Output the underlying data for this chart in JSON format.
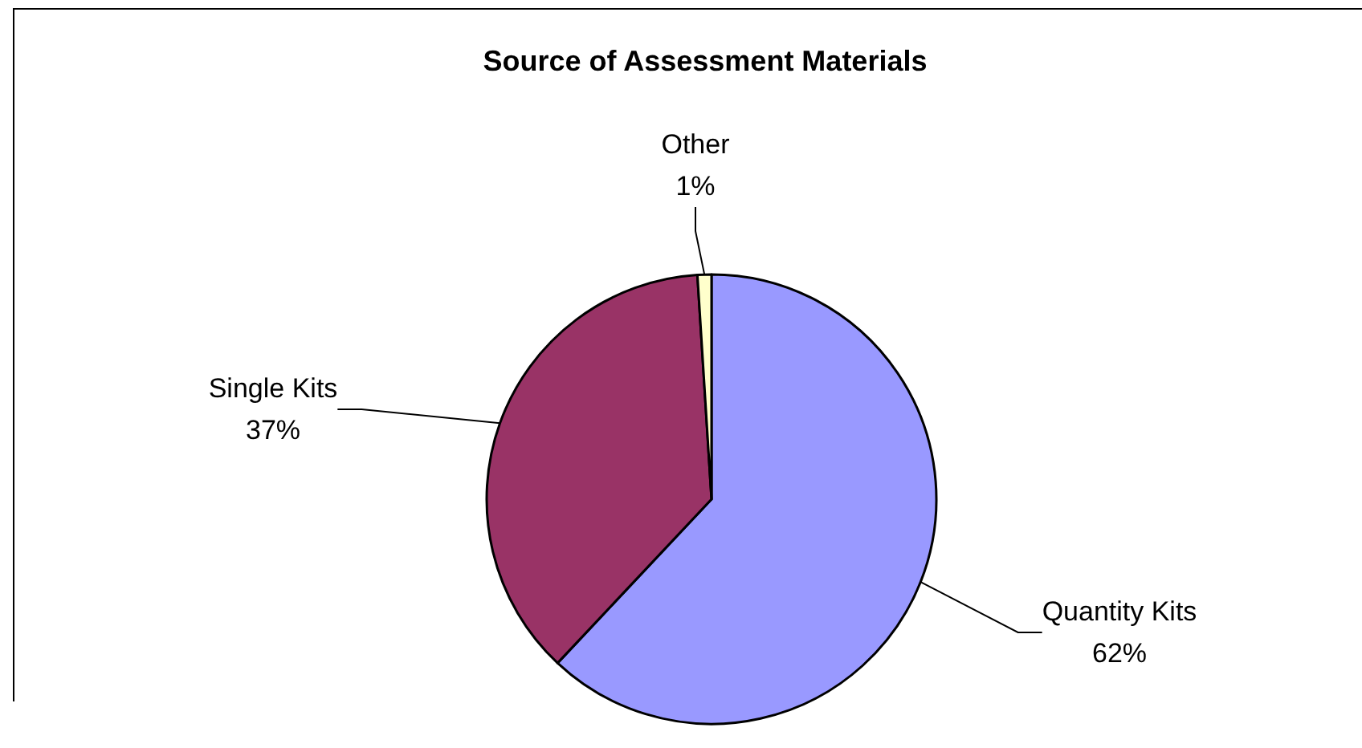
{
  "chart_data": {
    "type": "pie",
    "title": "Source of Assessment Materials",
    "categories": [
      "Quantity Kits",
      "Single Kits",
      "Other"
    ],
    "values": [
      62,
      37,
      1
    ],
    "colors": [
      "#9999ff",
      "#993366",
      "#ffffcc"
    ],
    "value_labels": [
      "62%",
      "37%",
      "1%"
    ]
  }
}
